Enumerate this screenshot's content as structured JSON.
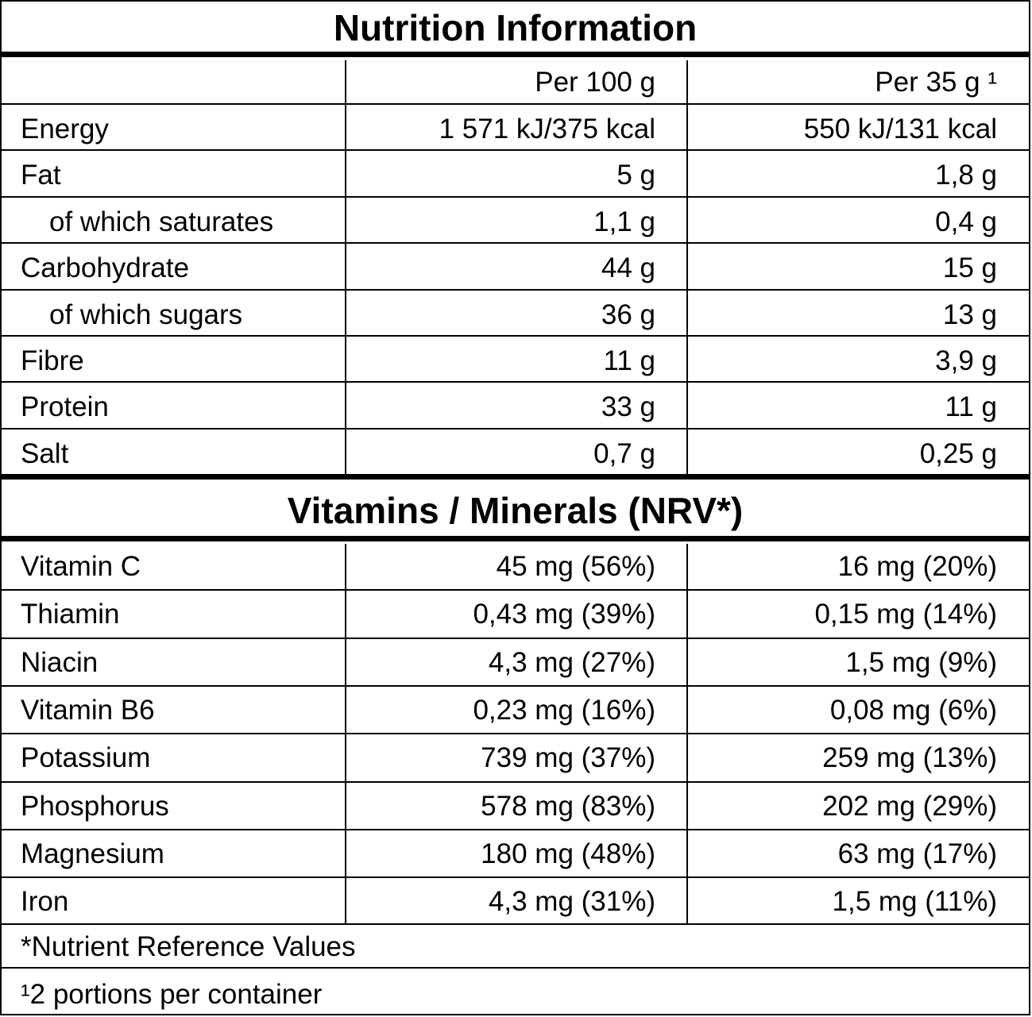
{
  "title": "Nutrition Information",
  "header": {
    "col1": "",
    "col2": "Per 100 g",
    "col3": "Per 35 g ¹"
  },
  "nutrition": [
    {
      "name": "Energy",
      "per100": "1 571 kJ/375 kcal",
      "per35": "550 kJ/131 kcal",
      "indent": false
    },
    {
      "name": "Fat",
      "per100": "5 g",
      "per35": "1,8 g",
      "indent": false
    },
    {
      "name": "of which saturates",
      "per100": "1,1 g",
      "per35": "0,4 g",
      "indent": true
    },
    {
      "name": "Carbohydrate",
      "per100": "44 g",
      "per35": "15 g",
      "indent": false
    },
    {
      "name": "of which sugars",
      "per100": "36 g",
      "per35": "13 g",
      "indent": true
    },
    {
      "name": "Fibre",
      "per100": "11 g",
      "per35": "3,9 g",
      "indent": false
    },
    {
      "name": "Protein",
      "per100": "33 g",
      "per35": "11 g",
      "indent": false
    },
    {
      "name": "Salt",
      "per100": "0,7 g",
      "per35": "0,25 g",
      "indent": false
    }
  ],
  "vitamins_title": "Vitamins / Minerals (NRV*)",
  "vitamins": [
    {
      "name": "Vitamin C",
      "per100": "45 mg (56%)",
      "per35": "16 mg (20%)"
    },
    {
      "name": "Thiamin",
      "per100": "0,43 mg (39%)",
      "per35": "0,15 mg (14%)"
    },
    {
      "name": "Niacin",
      "per100": "4,3 mg (27%)",
      "per35": "1,5 mg (9%)"
    },
    {
      "name": "Vitamin B6",
      "per100": "0,23 mg (16%)",
      "per35": "0,08 mg (6%)"
    },
    {
      "name": "Potassium",
      "per100": "739 mg (37%)",
      "per35": "259 mg (13%)"
    },
    {
      "name": "Phosphorus",
      "per100": "578 mg (83%)",
      "per35": "202 mg (29%)"
    },
    {
      "name": "Magnesium",
      "per100": "180 mg (48%)",
      "per35": "63 mg (17%)"
    },
    {
      "name": "Iron",
      "per100": "4,3 mg (31%)",
      "per35": "1,5 mg (11%)"
    }
  ],
  "footnotes": {
    "nrv": "*Nutrient Reference Values",
    "portions": "¹2 portions per container"
  }
}
